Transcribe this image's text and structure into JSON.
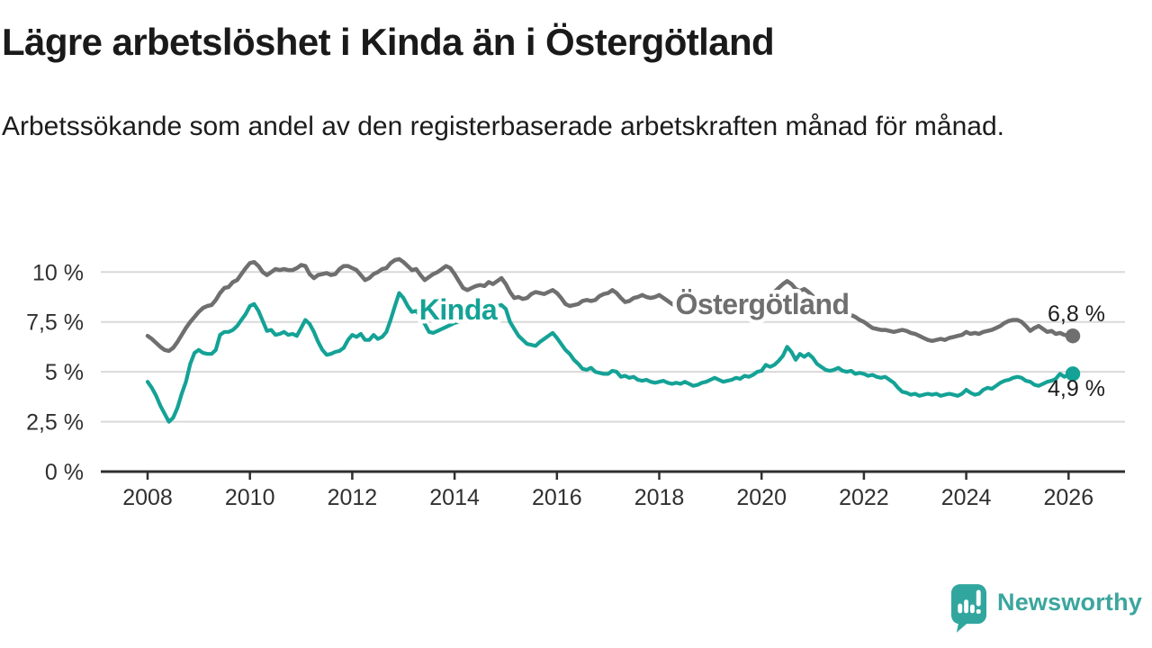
{
  "header": {
    "title": "Lägre arbetslöshet i Kinda än i Östergötland",
    "subtitle": "Arbetssökande som andel av den registerbaserade arbetskraften månad för månad."
  },
  "branding": {
    "logo_text": "Newsworthy",
    "logo_icon": "newsworthy-speech-bubble-bar-chart-icon",
    "brand_teal": "#31a69e"
  },
  "chart_data": {
    "type": "line",
    "title": "Lägre arbetslöshet i Kinda än i Östergötland",
    "subtitle": "Arbetssökande som andel av den registerbaserade arbetskraften månad för månad.",
    "x_unit": "month",
    "x_start_year": 2008,
    "x_end": "2026-02",
    "x_tick_labels": [
      "2008",
      "2010",
      "2012",
      "2014",
      "2016",
      "2018",
      "2020",
      "2022",
      "2024",
      "2026"
    ],
    "y_ticks": [
      0,
      2.5,
      5,
      7.5,
      10
    ],
    "y_tick_labels": [
      "0 %",
      "2,5 %",
      "5 %",
      "7,5 %",
      "10 %"
    ],
    "ylim": [
      0,
      11.2
    ],
    "grid": "horizontal",
    "legend_position": "inline-labels",
    "colors": {
      "gridline": "#d9d9d9",
      "axis": "#2f2f2f",
      "tick_text": "#303030",
      "value_text": "#1d1d1d"
    },
    "series": [
      {
        "name": "Kinda",
        "color": "#14a296",
        "end_label": "4,9 %",
        "values": [
          4.5,
          4.2,
          3.8,
          3.3,
          2.9,
          2.5,
          2.7,
          3.2,
          3.9,
          4.5,
          5.4,
          5.95,
          6.1,
          5.95,
          5.9,
          5.9,
          6.1,
          6.85,
          7.0,
          7.0,
          7.1,
          7.3,
          7.6,
          7.9,
          8.3,
          8.4,
          8.05,
          7.55,
          7.05,
          7.1,
          6.85,
          6.9,
          7.0,
          6.85,
          6.9,
          6.8,
          7.2,
          7.6,
          7.4,
          7.0,
          6.5,
          6.1,
          5.85,
          5.9,
          6.0,
          6.05,
          6.2,
          6.6,
          6.85,
          6.75,
          6.9,
          6.6,
          6.6,
          6.85,
          6.65,
          6.75,
          7.0,
          7.6,
          8.3,
          8.95,
          8.7,
          8.3,
          8.0,
          8.05,
          7.8,
          7.4,
          7.0,
          6.95,
          7.05,
          7.15,
          7.25,
          7.35,
          7.45,
          7.5,
          7.55,
          7.6,
          7.65,
          7.75,
          7.85,
          7.95,
          8.1,
          8.2,
          8.3,
          8.35,
          8.15,
          7.5,
          7.15,
          6.8,
          6.6,
          6.4,
          6.35,
          6.3,
          6.5,
          6.65,
          6.8,
          6.95,
          6.7,
          6.4,
          6.1,
          5.9,
          5.6,
          5.4,
          5.15,
          5.1,
          5.2,
          5.0,
          4.95,
          4.9,
          4.9,
          5.05,
          5.0,
          4.75,
          4.8,
          4.7,
          4.75,
          4.6,
          4.55,
          4.6,
          4.5,
          4.45,
          4.5,
          4.55,
          4.45,
          4.4,
          4.45,
          4.4,
          4.5,
          4.4,
          4.3,
          4.35,
          4.45,
          4.5,
          4.6,
          4.7,
          4.6,
          4.5,
          4.55,
          4.6,
          4.7,
          4.65,
          4.8,
          4.75,
          4.85,
          5.0,
          5.05,
          5.35,
          5.25,
          5.35,
          5.55,
          5.8,
          6.25,
          6.0,
          5.6,
          5.9,
          5.75,
          5.9,
          5.7,
          5.4,
          5.25,
          5.1,
          5.05,
          5.1,
          5.2,
          5.05,
          5.0,
          5.05,
          4.9,
          4.95,
          4.9,
          4.8,
          4.85,
          4.75,
          4.7,
          4.75,
          4.6,
          4.45,
          4.2,
          4.0,
          3.95,
          3.85,
          3.9,
          3.8,
          3.85,
          3.9,
          3.85,
          3.9,
          3.8,
          3.85,
          3.9,
          3.85,
          3.8,
          3.9,
          4.1,
          3.95,
          3.85,
          3.9,
          4.1,
          4.2,
          4.15,
          4.3,
          4.45,
          4.55,
          4.6,
          4.7,
          4.75,
          4.7,
          4.55,
          4.5,
          4.35,
          4.3,
          4.4,
          4.5,
          4.55,
          4.65,
          4.9,
          4.75,
          4.85,
          4.9
        ]
      },
      {
        "name": "Östergötland",
        "color": "#6f6f6f",
        "end_label": "6,8 %",
        "values": [
          6.8,
          6.65,
          6.45,
          6.25,
          6.1,
          6.05,
          6.2,
          6.5,
          6.85,
          7.2,
          7.5,
          7.75,
          8.0,
          8.2,
          8.3,
          8.35,
          8.6,
          8.95,
          9.2,
          9.25,
          9.5,
          9.6,
          9.9,
          10.2,
          10.45,
          10.5,
          10.3,
          10.0,
          9.85,
          10.0,
          10.15,
          10.1,
          10.15,
          10.1,
          10.1,
          10.2,
          10.35,
          10.3,
          9.9,
          9.7,
          9.85,
          9.9,
          9.95,
          9.85,
          9.9,
          10.15,
          10.3,
          10.3,
          10.2,
          10.1,
          9.85,
          9.6,
          9.7,
          9.9,
          10.0,
          10.15,
          10.2,
          10.45,
          10.6,
          10.65,
          10.5,
          10.3,
          10.1,
          10.15,
          9.85,
          9.6,
          9.75,
          9.9,
          10.0,
          10.15,
          10.3,
          10.2,
          9.9,
          9.55,
          9.2,
          9.1,
          9.2,
          9.3,
          9.35,
          9.3,
          9.5,
          9.4,
          9.55,
          9.7,
          9.4,
          9.0,
          8.7,
          8.75,
          8.65,
          8.7,
          8.9,
          9.0,
          8.95,
          8.9,
          9.0,
          9.1,
          8.95,
          8.7,
          8.4,
          8.3,
          8.35,
          8.4,
          8.55,
          8.6,
          8.55,
          8.6,
          8.8,
          8.9,
          8.95,
          9.1,
          8.95,
          8.7,
          8.5,
          8.55,
          8.7,
          8.75,
          8.85,
          8.75,
          8.7,
          8.75,
          8.85,
          8.7,
          8.55,
          8.4,
          8.3,
          8.05,
          8.0,
          8.1,
          8.1,
          8.2,
          8.35,
          8.5,
          8.2,
          8.3,
          8.4,
          8.5,
          8.45,
          8.4,
          8.35,
          8.3,
          8.3,
          8.35,
          8.4,
          8.45,
          8.5,
          8.6,
          8.75,
          9.0,
          9.2,
          9.4,
          9.55,
          9.4,
          9.15,
          9.05,
          9.15,
          9.0,
          8.8,
          8.6,
          8.5,
          8.4,
          8.3,
          8.2,
          8.1,
          8.0,
          7.9,
          7.85,
          7.75,
          7.6,
          7.5,
          7.35,
          7.2,
          7.15,
          7.1,
          7.1,
          7.05,
          7.0,
          7.05,
          7.1,
          7.05,
          6.95,
          6.9,
          6.8,
          6.7,
          6.6,
          6.55,
          6.6,
          6.65,
          6.6,
          6.7,
          6.75,
          6.8,
          6.85,
          7.0,
          6.9,
          6.95,
          6.9,
          7.0,
          7.05,
          7.1,
          7.2,
          7.3,
          7.45,
          7.55,
          7.6,
          7.6,
          7.5,
          7.3,
          7.05,
          7.2,
          7.3,
          7.15,
          7.0,
          7.05,
          6.9,
          6.95,
          6.85,
          6.8,
          6.8
        ]
      }
    ]
  }
}
